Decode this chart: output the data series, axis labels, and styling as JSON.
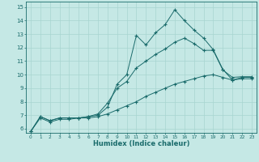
{
  "xlabel": "Humidex (Indice chaleur)",
  "ylabel": "",
  "bg_color": "#c5e8e5",
  "line_color": "#1a6b6b",
  "grid_color": "#a8d5d0",
  "xlim": [
    -0.5,
    23.5
  ],
  "ylim": [
    5.7,
    15.4
  ],
  "xticks": [
    0,
    1,
    2,
    3,
    4,
    5,
    6,
    7,
    8,
    9,
    10,
    11,
    12,
    13,
    14,
    15,
    16,
    17,
    18,
    19,
    20,
    21,
    22,
    23
  ],
  "yticks": [
    6,
    7,
    8,
    9,
    10,
    11,
    12,
    13,
    14,
    15
  ],
  "line1_x": [
    0,
    1,
    2,
    3,
    4,
    5,
    6,
    7,
    8,
    9,
    10,
    11,
    12,
    13,
    14,
    15,
    16,
    17,
    18,
    19,
    20,
    21,
    22,
    23
  ],
  "line1_y": [
    5.8,
    6.9,
    6.6,
    6.8,
    6.8,
    6.8,
    6.9,
    7.0,
    7.6,
    9.3,
    10.0,
    12.9,
    12.2,
    13.1,
    13.7,
    14.8,
    14.0,
    13.3,
    12.7,
    11.85,
    10.4,
    9.6,
    9.8,
    9.8
  ],
  "line2_x": [
    0,
    1,
    2,
    3,
    4,
    5,
    6,
    7,
    8,
    9,
    10,
    11,
    12,
    13,
    14,
    15,
    16,
    17,
    18,
    19,
    20,
    21,
    22,
    23
  ],
  "line2_y": [
    5.8,
    6.9,
    6.6,
    6.8,
    6.8,
    6.8,
    6.9,
    7.1,
    7.9,
    9.0,
    9.5,
    10.5,
    11.0,
    11.5,
    11.9,
    12.4,
    12.7,
    12.3,
    11.8,
    11.8,
    10.35,
    9.8,
    9.85,
    9.85
  ],
  "line3_x": [
    0,
    1,
    2,
    3,
    4,
    5,
    6,
    7,
    8,
    9,
    10,
    11,
    12,
    13,
    14,
    15,
    16,
    17,
    18,
    19,
    20,
    21,
    22,
    23
  ],
  "line3_y": [
    5.8,
    6.8,
    6.5,
    6.7,
    6.7,
    6.8,
    6.8,
    6.9,
    7.1,
    7.4,
    7.7,
    8.0,
    8.4,
    8.7,
    9.0,
    9.3,
    9.5,
    9.7,
    9.9,
    10.0,
    9.8,
    9.6,
    9.7,
    9.7
  ]
}
